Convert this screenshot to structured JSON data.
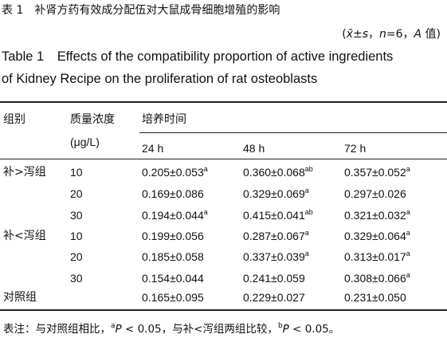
{
  "title": "表 1　补肾方药有效成分配伍对大鼠成骨细胞增殖的影响",
  "stats": [
    "(",
    "x̄",
    "±",
    "s",
    "，",
    "n",
    "=6，",
    "A",
    " 值)"
  ],
  "title_en": [
    "Table 1　Effects of the compatibility proportion of active ingredients",
    "of Kidney Recipe on the proliferation of rat osteoblasts"
  ],
  "table": {
    "header": {
      "group": "组别",
      "conc": [
        "质量浓度",
        "(μg/L)"
      ],
      "time": "培养时间",
      "times": [
        "24 h",
        "48 h",
        "72 h"
      ]
    },
    "rows": [
      {
        "group": "补>泻组",
        "conc": "10",
        "cells": [
          {
            "text": "0.205±0.053",
            "sup": "a"
          },
          {
            "text": "0.360±0.068",
            "sup": "ab"
          },
          {
            "text": "0.357±0.052",
            "sup": "a"
          }
        ]
      },
      {
        "conc": "20",
        "cells": [
          {
            "text": "0.169±0.086"
          },
          {
            "text": "0.329±0.069",
            "sup": "a"
          },
          {
            "text": "0.297±0.026"
          }
        ]
      },
      {
        "conc": "30",
        "cells": [
          {
            "text": "0.194±0.044",
            "sup": "a"
          },
          {
            "text": "0.415±0.041",
            "sup": "ab"
          },
          {
            "text": "0.321±0.032",
            "sup": "a"
          }
        ]
      },
      {
        "group": "补<泻组",
        "conc": "10",
        "cells": [
          {
            "text": "0.199±0.056"
          },
          {
            "text": "0.287±0.067",
            "sup": "a"
          },
          {
            "text": "0.329±0.064",
            "sup": "a"
          }
        ]
      },
      {
        "conc": "20",
        "cells": [
          {
            "text": "0.185±0.058"
          },
          {
            "text": "0.337±0.039",
            "sup": "a"
          },
          {
            "text": "0.313±0.017",
            "sup": "a"
          }
        ]
      },
      {
        "conc": "30",
        "cells": [
          {
            "text": "0.154±0.044"
          },
          {
            "text": "0.241±0.059"
          },
          {
            "text": "0.308±0.066",
            "sup": "a"
          }
        ]
      },
      {
        "group": "对照组",
        "cells": [
          {
            "text": "0.165±0.095"
          },
          {
            "text": "0.229±0.027"
          },
          {
            "text": "0.231±0.050"
          }
        ]
      }
    ]
  },
  "footnote": [
    "表注：与对照组相比，",
    "a",
    "P",
    " < 0.05，与补<泻组两组比较，",
    "b",
    "P",
    " < 0.05。"
  ]
}
